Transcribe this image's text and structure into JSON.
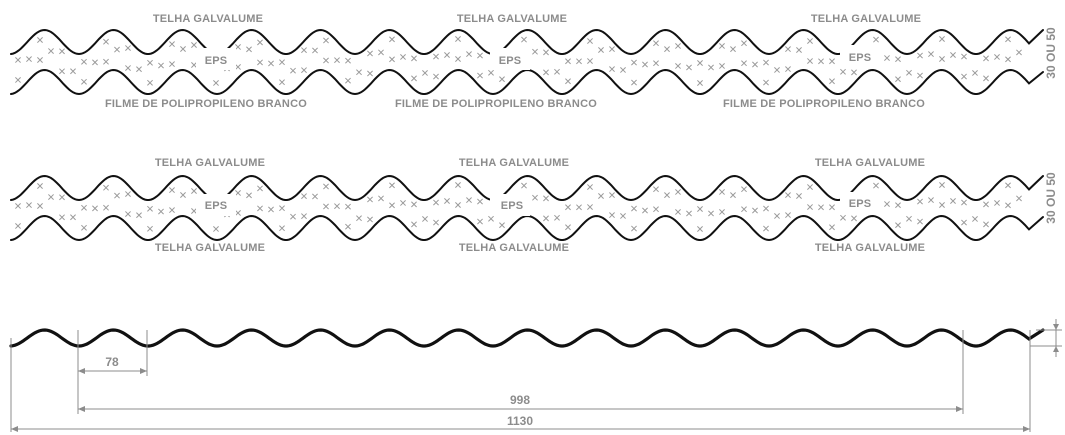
{
  "panels": [
    {
      "top_labels": [
        "TELHA GALVALUME",
        "TELHA GALVALUME",
        "TELHA GALVALUME"
      ],
      "core_labels": [
        "EPS",
        "EPS",
        "EPS"
      ],
      "bottom_labels": [
        "FILME DE POLIPROPILENO BRANCO",
        "FILME DE POLIPROPILENO BRANCO",
        "FILME DE POLIPROPILENO BRANCO"
      ],
      "thickness_label": "30 OU 50"
    },
    {
      "top_labels": [
        "TELHA GALVALUME",
        "TELHA GALVALUME",
        "TELHA GALVALUME"
      ],
      "core_labels": [
        "EPS",
        "EPS",
        "EPS"
      ],
      "bottom_labels": [
        "TELHA GALVALUME",
        "TELHA GALVALUME",
        "TELHA GALVALUME"
      ],
      "thickness_label": "30 OU 50"
    }
  ],
  "profile": {
    "pitch_label": "78",
    "useful_width_label": "998",
    "total_width_label": "1130"
  },
  "colors": {
    "line": "#111111",
    "dimension": "#8c8c8c",
    "fill_marks": "#9a9a9a"
  }
}
